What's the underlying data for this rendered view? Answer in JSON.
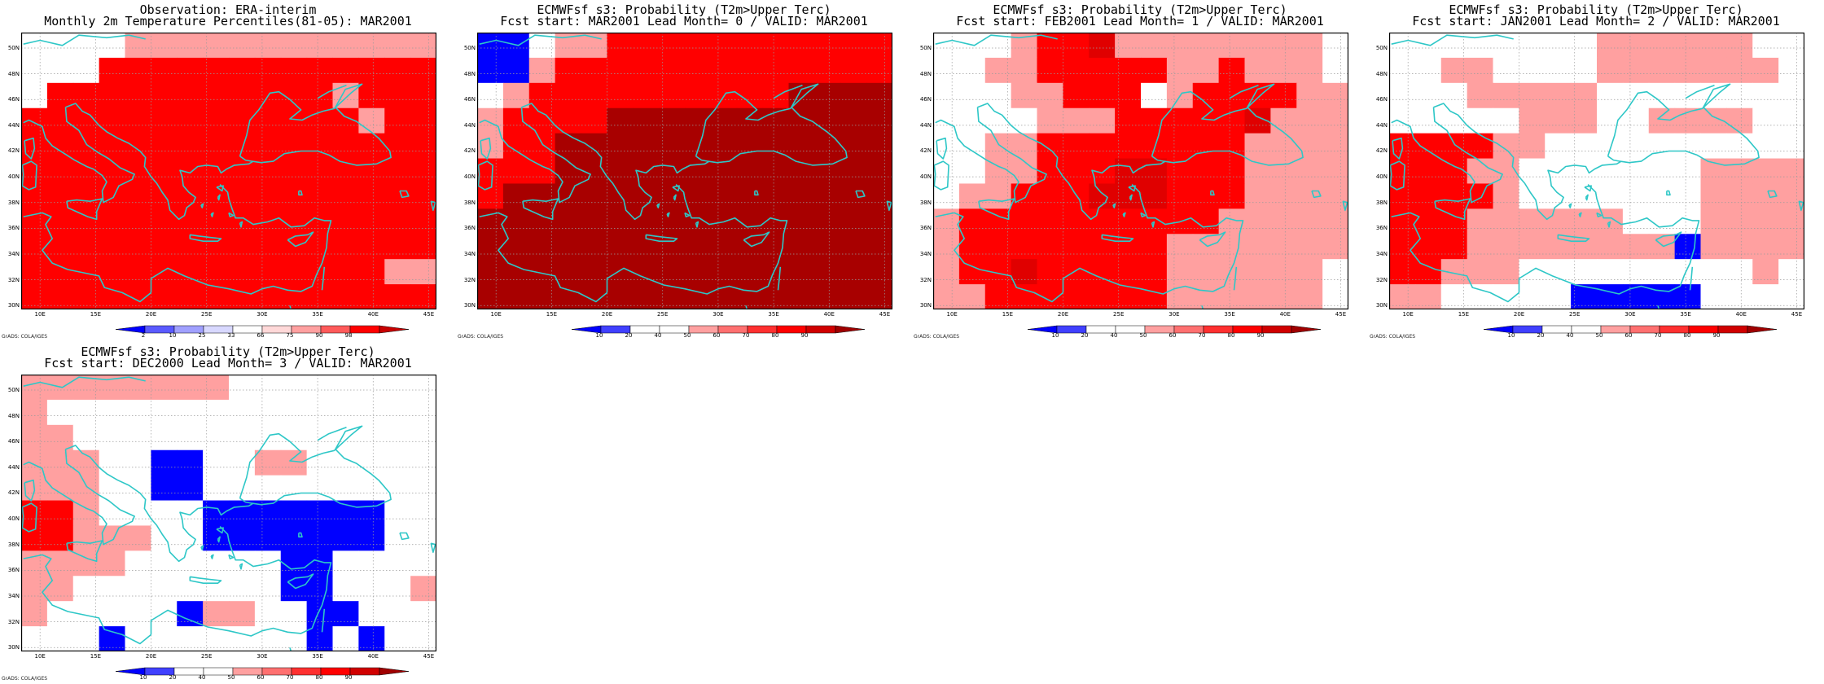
{
  "credit": "GrADS: COLA/IGES",
  "lat_labels": [
    "50N",
    "48N",
    "46N",
    "44N",
    "42N",
    "40N",
    "38N",
    "36N",
    "34N",
    "32N",
    "30N"
  ],
  "lon_labels": [
    "10E",
    "15E",
    "20E",
    "25E",
    "30E",
    "35E",
    "40E",
    "45E"
  ],
  "colors": {
    "coast": "#2ec7c7",
    "grid": "#9a9a9a",
    "obs_scale": [
      "#0000ff",
      "#5a5aff",
      "#a0a0ff",
      "#d8d8ff",
      "#ffffff",
      "#ffd8d8",
      "#ffa0a0",
      "#ff5a5a",
      "#ff0000",
      "#c80000"
    ],
    "prob_scale": [
      "#0000ff",
      "#4040ff",
      "#ffffff",
      "#ffffff",
      "#ffa0a0",
      "#ff7070",
      "#ff3030",
      "#ff0000",
      "#d00000",
      "#a00000"
    ]
  },
  "panels": [
    {
      "id": "obs",
      "title1": "Observation: ERA-interim",
      "title2": "Monthly 2m Temperature Percentiles(81-05): MAR2001",
      "colorbar_labels": [
        "2",
        "10",
        "25",
        "33",
        "66",
        "75",
        "90",
        "98"
      ],
      "grid": [
        "wwwwpppppppppppp",
        "wwwrrrrrrrrrrrrr",
        "wrrrrrrrrrrrprrr",
        "rrrrrrrrrrrrrprr",
        "rrrrrrrrrrrrrrrr",
        "rrrrrrrrrrrrrrrr",
        "rrrrrrrrrrrrrrrr",
        "rrrrrrrrrrrrrrrr",
        "rrrrrrrrrrrrrrrr",
        "rrrrrrrrrrrrrrpp",
        "rrrrrrrrrrrrrrrr"
      ]
    },
    {
      "id": "lead0",
      "title1": "ECMWFsf s3: Probability (T2m>Upper Terc)",
      "title2": "Fcst start: MAR2001   Lead Month= 0 / VALID: MAR2001",
      "colorbar_labels": [
        "10",
        "20",
        "40",
        "50",
        "60",
        "70",
        "80",
        "90"
      ],
      "grid": [
        "BBwpprrrrrrrrrrr",
        "BBprrrrrrrrrrrrr",
        "wprrrrrrrrrrdddd",
        "prrrrddddddddddd",
        "prrddddddddddddd",
        "rrrddddddddddddd",
        "rddddddddddddddd",
        "dddddddddddddddd",
        "dddddddddddddddd",
        "dddddddddddddddd",
        "dddddddddddddddd"
      ]
    },
    {
      "id": "lead1",
      "title1": "ECMWFsf s3: Probability (T2m>Upper Terc)",
      "title2": "Fcst start: FEB2001   Lead Month= 1 / VALID: MAR2001",
      "colorbar_labels": [
        "10",
        "20",
        "40",
        "50",
        "60",
        "70",
        "80",
        "90"
      ],
      "grid": [
        "wwwprrmppppppppw",
        "wwpprrrrrpprpppw",
        "wwwpprrrwprrrrpp",
        "wwwwppprrrrrmppp",
        "wwpprrrrrrrrpppp",
        "wwpprrrmmrrrpppp",
        "wpprrrmmmrrrpppp",
        "prrrrrrrrrrppppp",
        "prrrrrrrrppppppp",
        "prrmrrrrrppppppw",
        "pprrrrrrrppppppw"
      ]
    },
    {
      "id": "lead2",
      "title1": "ECMWFsf s3: Probability (T2m>Upper Terc)",
      "title2": "Fcst start: JAN2001   Lead Month= 2 / VALID: MAR2001",
      "colorbar_labels": [
        "10",
        "20",
        "40",
        "50",
        "60",
        "70",
        "80",
        "90"
      ],
      "grid": [
        "wwwwwwwwppppppww",
        "wwppwwwwpppppppw",
        "wwwpppppwwwwwwww",
        "wwwwwpppwwppppww",
        "rrrrppwwwwwwwwww",
        "rrrppwwwwwwwpppp",
        "rrrrpwwwwwwwpppp",
        "rrrppppppwwwpppp",
        "rrrppppppppBpppp",
        "rrpppwwwwwwwwwpw",
        "ppwwwwwBBBBBwwww"
      ]
    },
    {
      "id": "lead3",
      "title1": "ECMWFsf s3: Probability (T2m>Upper Terc)",
      "title2": "Fcst start: DEC2000   Lead Month= 3 / VALID: MAR2001",
      "colorbar_labels": [
        "10",
        "20",
        "40",
        "50",
        "60",
        "70",
        "80",
        "90"
      ],
      "grid": [
        "ppppppppwwwwwwww",
        "pwwwwwwwwwwwwwww",
        "ppwwwwwwwwwwwwww",
        "pppwwBBwwppwwwww",
        "pppwwBBwwwwwwwww",
        "rrpwwwwBBBBBBBww",
        "rrpppwwBBBBBBBww",
        "ppppwwwwwwBBwwww",
        "ppwwwwwwwwBBwwwp",
        "pwwwwwBppwwBBwww",
        "wwwBwwwwwwwBwBww"
      ]
    }
  ]
}
